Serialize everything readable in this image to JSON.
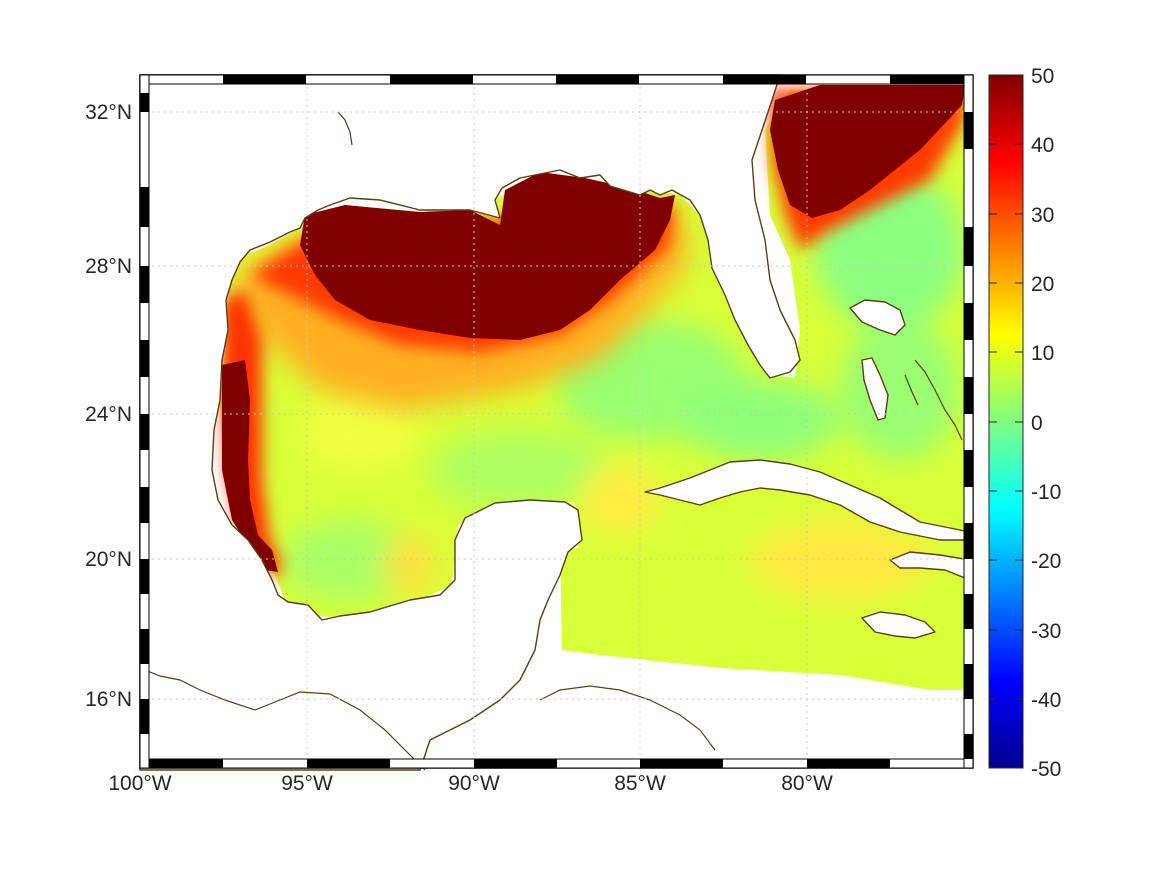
{
  "map": {
    "type": "heatmap",
    "projection": "mercator",
    "lon_range": [
      -100,
      -75
    ],
    "lat_range": [
      14.2,
      33.0
    ],
    "grid": "dotted",
    "frame": "checkered black-white",
    "land_color": "#ffffff",
    "coastline_color": "#5a3e10",
    "lon_ticks": [
      -100,
      -95,
      -90,
      -85,
      -80
    ],
    "lon_tick_labels": [
      "100°W",
      "95°W",
      "90°W",
      "85°W",
      "80°W"
    ],
    "lat_ticks": [
      16,
      20,
      24,
      28,
      32
    ],
    "lat_tick_labels": [
      "16°N",
      "20°N",
      "24°N",
      "28°N",
      "32°N"
    ]
  },
  "colorbar": {
    "colormap": "jet",
    "range": [
      -50,
      50
    ],
    "ticks": [
      50,
      40,
      30,
      20,
      10,
      0,
      -10,
      -20,
      -30,
      -40,
      -50
    ],
    "tick_labels": [
      "50",
      "40",
      "30",
      "20",
      "10",
      "0",
      "-10",
      "-20",
      "-30",
      "-40",
      "-50"
    ]
  },
  "colors": {
    "max": "#800000",
    "high": "#ff2a00",
    "mid_high": "#ffd000",
    "mid": "#d8ff30",
    "zero": "#70ff90",
    "low": "#00ffff",
    "min": "#000080"
  }
}
